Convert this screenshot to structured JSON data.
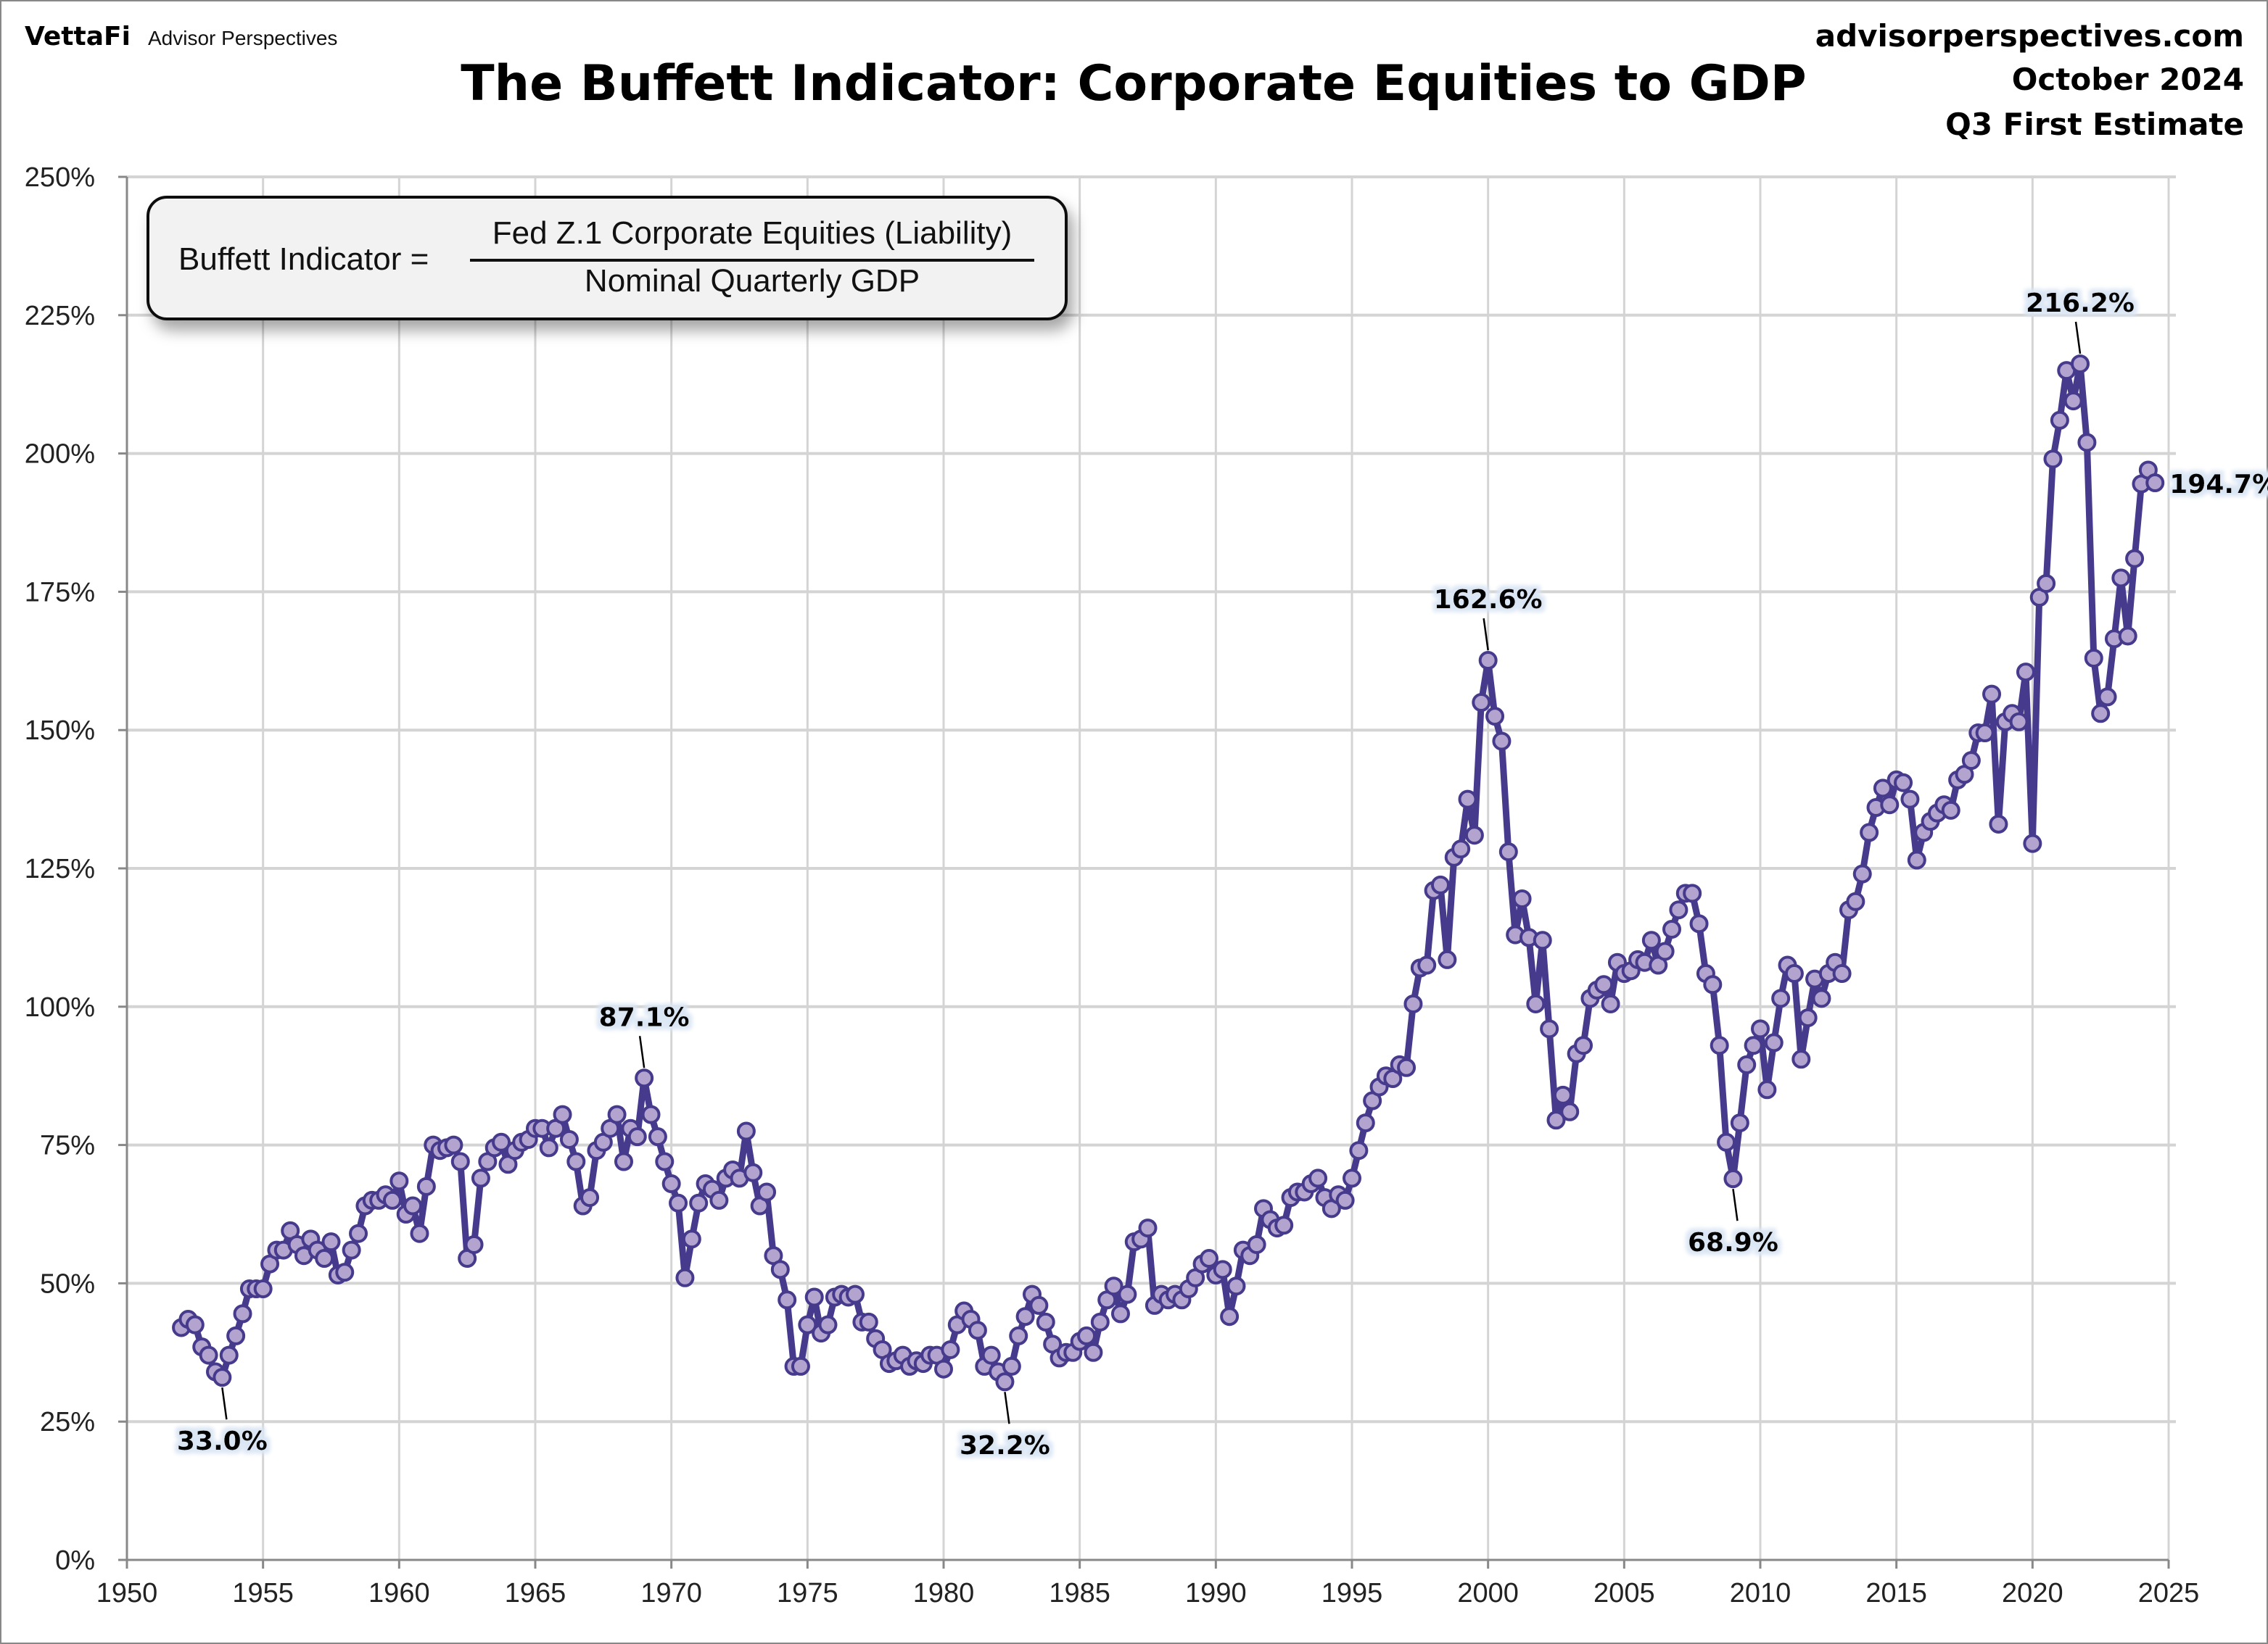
{
  "header": {
    "logo": "VettaFi",
    "brand": "Advisor Perspectives",
    "site": "advisorperspectives.com",
    "date": "October 2024",
    "estimate": "Q3 First Estimate"
  },
  "formula": {
    "lhs": "Buffett Indicator =",
    "numerator": "Fed Z.1 Corporate Equities (Liability)",
    "denominator": "Nominal Quarterly GDP"
  },
  "chart_data": {
    "type": "line",
    "title": "The Buffett Indicator: Corporate Equities to GDP",
    "xlabel": "",
    "ylabel": "",
    "frequency": "quarterly",
    "start": "1952 Q1",
    "end": "2024 Q3",
    "xlim": [
      1950,
      2025
    ],
    "ylim": [
      0,
      250
    ],
    "x_ticks": [
      "1950",
      "1955",
      "1960",
      "1965",
      "1970",
      "1975",
      "1980",
      "1985",
      "1990",
      "1995",
      "2000",
      "2005",
      "2010",
      "2015",
      "2020",
      "2025"
    ],
    "y_ticks": [
      "0%",
      "25%",
      "50%",
      "75%",
      "100%",
      "125%",
      "150%",
      "175%",
      "200%",
      "225%",
      "250%"
    ],
    "grid": true,
    "markers": true,
    "colors": {
      "line": "#463a8c",
      "marker_fill": "#b3a4cf",
      "annotation_bg": "#dbe6f4"
    },
    "values": [
      42,
      43.5,
      42.5,
      38.5,
      37,
      34,
      33.0,
      37,
      40.5,
      44.5,
      49,
      49,
      49,
      53.5,
      56,
      56,
      59.5,
      57,
      55,
      58,
      56,
      54.5,
      57.5,
      51.5,
      52,
      56,
      59,
      64,
      65,
      65,
      66,
      65,
      68.5,
      62.5,
      64,
      59,
      67.5,
      75,
      74,
      74.5,
      75,
      72,
      54.5,
      57,
      69,
      72,
      74.5,
      75.5,
      71.5,
      74,
      75.5,
      76,
      78,
      78,
      74.5,
      78,
      80.5,
      76,
      72,
      64,
      65.5,
      74,
      75.5,
      78,
      80.5,
      72,
      78,
      76.5,
      87.1,
      80.5,
      76.5,
      72,
      68,
      64.5,
      51,
      58,
      64.5,
      68,
      67,
      65,
      69,
      70.5,
      69,
      77.5,
      70,
      64,
      66.5,
      55,
      52.5,
      47,
      35,
      35,
      42.5,
      47.5,
      41,
      42.5,
      47.5,
      48,
      47.5,
      48,
      43,
      43,
      40,
      38,
      35.5,
      36,
      37,
      35,
      36,
      35.5,
      37,
      37,
      34.5,
      38,
      42.5,
      45,
      43.5,
      41.5,
      35,
      37,
      34,
      32.2,
      35,
      40.5,
      44,
      48,
      46,
      43,
      39,
      36.5,
      37.5,
      37.5,
      39.5,
      40.5,
      37.5,
      43,
      47,
      49.5,
      44.5,
      48,
      57.5,
      58,
      60,
      46,
      48,
      47,
      48,
      47,
      49,
      51,
      53.5,
      54.5,
      51.5,
      52.5,
      44,
      49.5,
      56,
      55,
      57,
      63.5,
      61.5,
      60,
      60.5,
      65.5,
      66.5,
      66.5,
      68,
      69,
      65.5,
      63.5,
      66,
      65,
      69,
      74,
      79,
      83,
      85.5,
      87.5,
      87,
      89.5,
      89,
      100.5,
      107,
      107.5,
      121,
      122,
      108.5,
      127,
      128.5,
      137.5,
      131,
      155,
      162.6,
      152.5,
      148,
      128,
      113,
      119.5,
      112.5,
      100.5,
      112,
      96,
      79.5,
      84,
      81,
      91.5,
      93,
      101.5,
      103,
      104,
      100.5,
      108,
      106,
      106.5,
      108.5,
      108,
      112,
      107.5,
      110,
      114,
      117.5,
      120.5,
      120.5,
      115,
      106,
      104,
      93,
      75.5,
      68.9,
      79,
      89.5,
      93,
      96,
      85,
      93.5,
      101.5,
      107.5,
      106,
      90.5,
      98,
      105,
      101.5,
      106,
      108,
      106,
      117.5,
      119,
      124,
      131.5,
      136,
      139.5,
      136.5,
      141,
      140.5,
      137.5,
      126.5,
      131.5,
      133.5,
      135,
      136.5,
      135.5,
      141,
      142,
      144.5,
      149.5,
      149.5,
      156.5,
      133,
      151.5,
      153,
      151.5,
      160.5,
      129.5,
      174,
      176.5,
      199,
      206,
      215,
      209.5,
      216.2,
      202,
      163,
      153,
      156,
      166.5,
      177.5,
      167,
      181,
      194.5,
      197,
      194.7
    ],
    "annotations": [
      {
        "text": "33.0%",
        "value": 33.0,
        "position": "below"
      },
      {
        "text": "87.1%",
        "value": 87.1,
        "position": "above"
      },
      {
        "text": "32.2%",
        "value": 32.2,
        "position": "below"
      },
      {
        "text": "162.6%",
        "value": 162.6,
        "position": "above"
      },
      {
        "text": "68.9%",
        "value": 68.9,
        "position": "below"
      },
      {
        "text": "216.2%",
        "value": 216.2,
        "position": "above"
      },
      {
        "text": "194.7%",
        "value": 194.7,
        "position": "right"
      }
    ]
  }
}
